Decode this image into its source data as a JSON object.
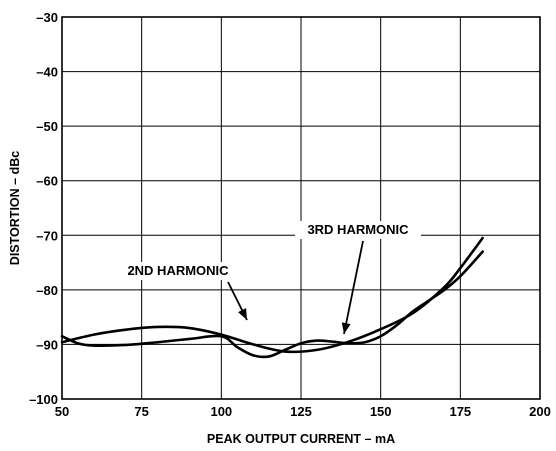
{
  "chart_data": {
    "type": "line",
    "title": "",
    "xlabel": "PEAK OUTPUT CURRENT – mA",
    "ylabel": "DISTORTION – dBc",
    "xlim": [
      50,
      200
    ],
    "ylim": [
      -100,
      -30
    ],
    "x_ticks": [
      50,
      75,
      100,
      125,
      150,
      175,
      200
    ],
    "y_ticks": [
      -30,
      -40,
      -50,
      -60,
      -70,
      -80,
      -90,
      -100
    ],
    "x_tick_labels": [
      "50",
      "75",
      "100",
      "125",
      "150",
      "175",
      "200"
    ],
    "y_tick_labels": [
      "–30",
      "–40",
      "–50",
      "–60",
      "–70",
      "–80",
      "–90",
      "–100"
    ],
    "grid": true,
    "series": [
      {
        "name": "2ND HARMONIC",
        "x": [
          50,
          60,
          70,
          80,
          90,
          100,
          110,
          120,
          130,
          140,
          150,
          160,
          170,
          175,
          182
        ],
        "y": [
          -89.6,
          -88.2,
          -87.3,
          -86.8,
          -87.0,
          -88.2,
          -90.0,
          -91.3,
          -91.0,
          -89.5,
          -87.2,
          -84.3,
          -79.5,
          -76.0,
          -70.5
        ]
      },
      {
        "name": "3RD HARMONIC",
        "x": [
          50,
          55,
          60,
          70,
          80,
          90,
          100,
          105,
          110,
          115,
          120,
          125,
          130,
          135,
          140,
          145,
          150,
          155,
          160,
          165,
          170,
          175,
          182
        ],
        "y": [
          -88.5,
          -89.8,
          -90.2,
          -90.1,
          -89.6,
          -89.0,
          -88.5,
          -90.5,
          -92.0,
          -92.2,
          -91.0,
          -89.8,
          -89.3,
          -89.5,
          -89.8,
          -89.6,
          -88.5,
          -86.5,
          -84.0,
          -82.0,
          -80.0,
          -77.5,
          -73.0
        ]
      }
    ],
    "annotations": [
      {
        "text": "2ND HARMONIC",
        "anchor_x": 114,
        "anchor_y": -86.2
      },
      {
        "text": "3RD HARMONIC",
        "anchor_x": 137.5,
        "anchor_y": -88.8
      }
    ]
  }
}
